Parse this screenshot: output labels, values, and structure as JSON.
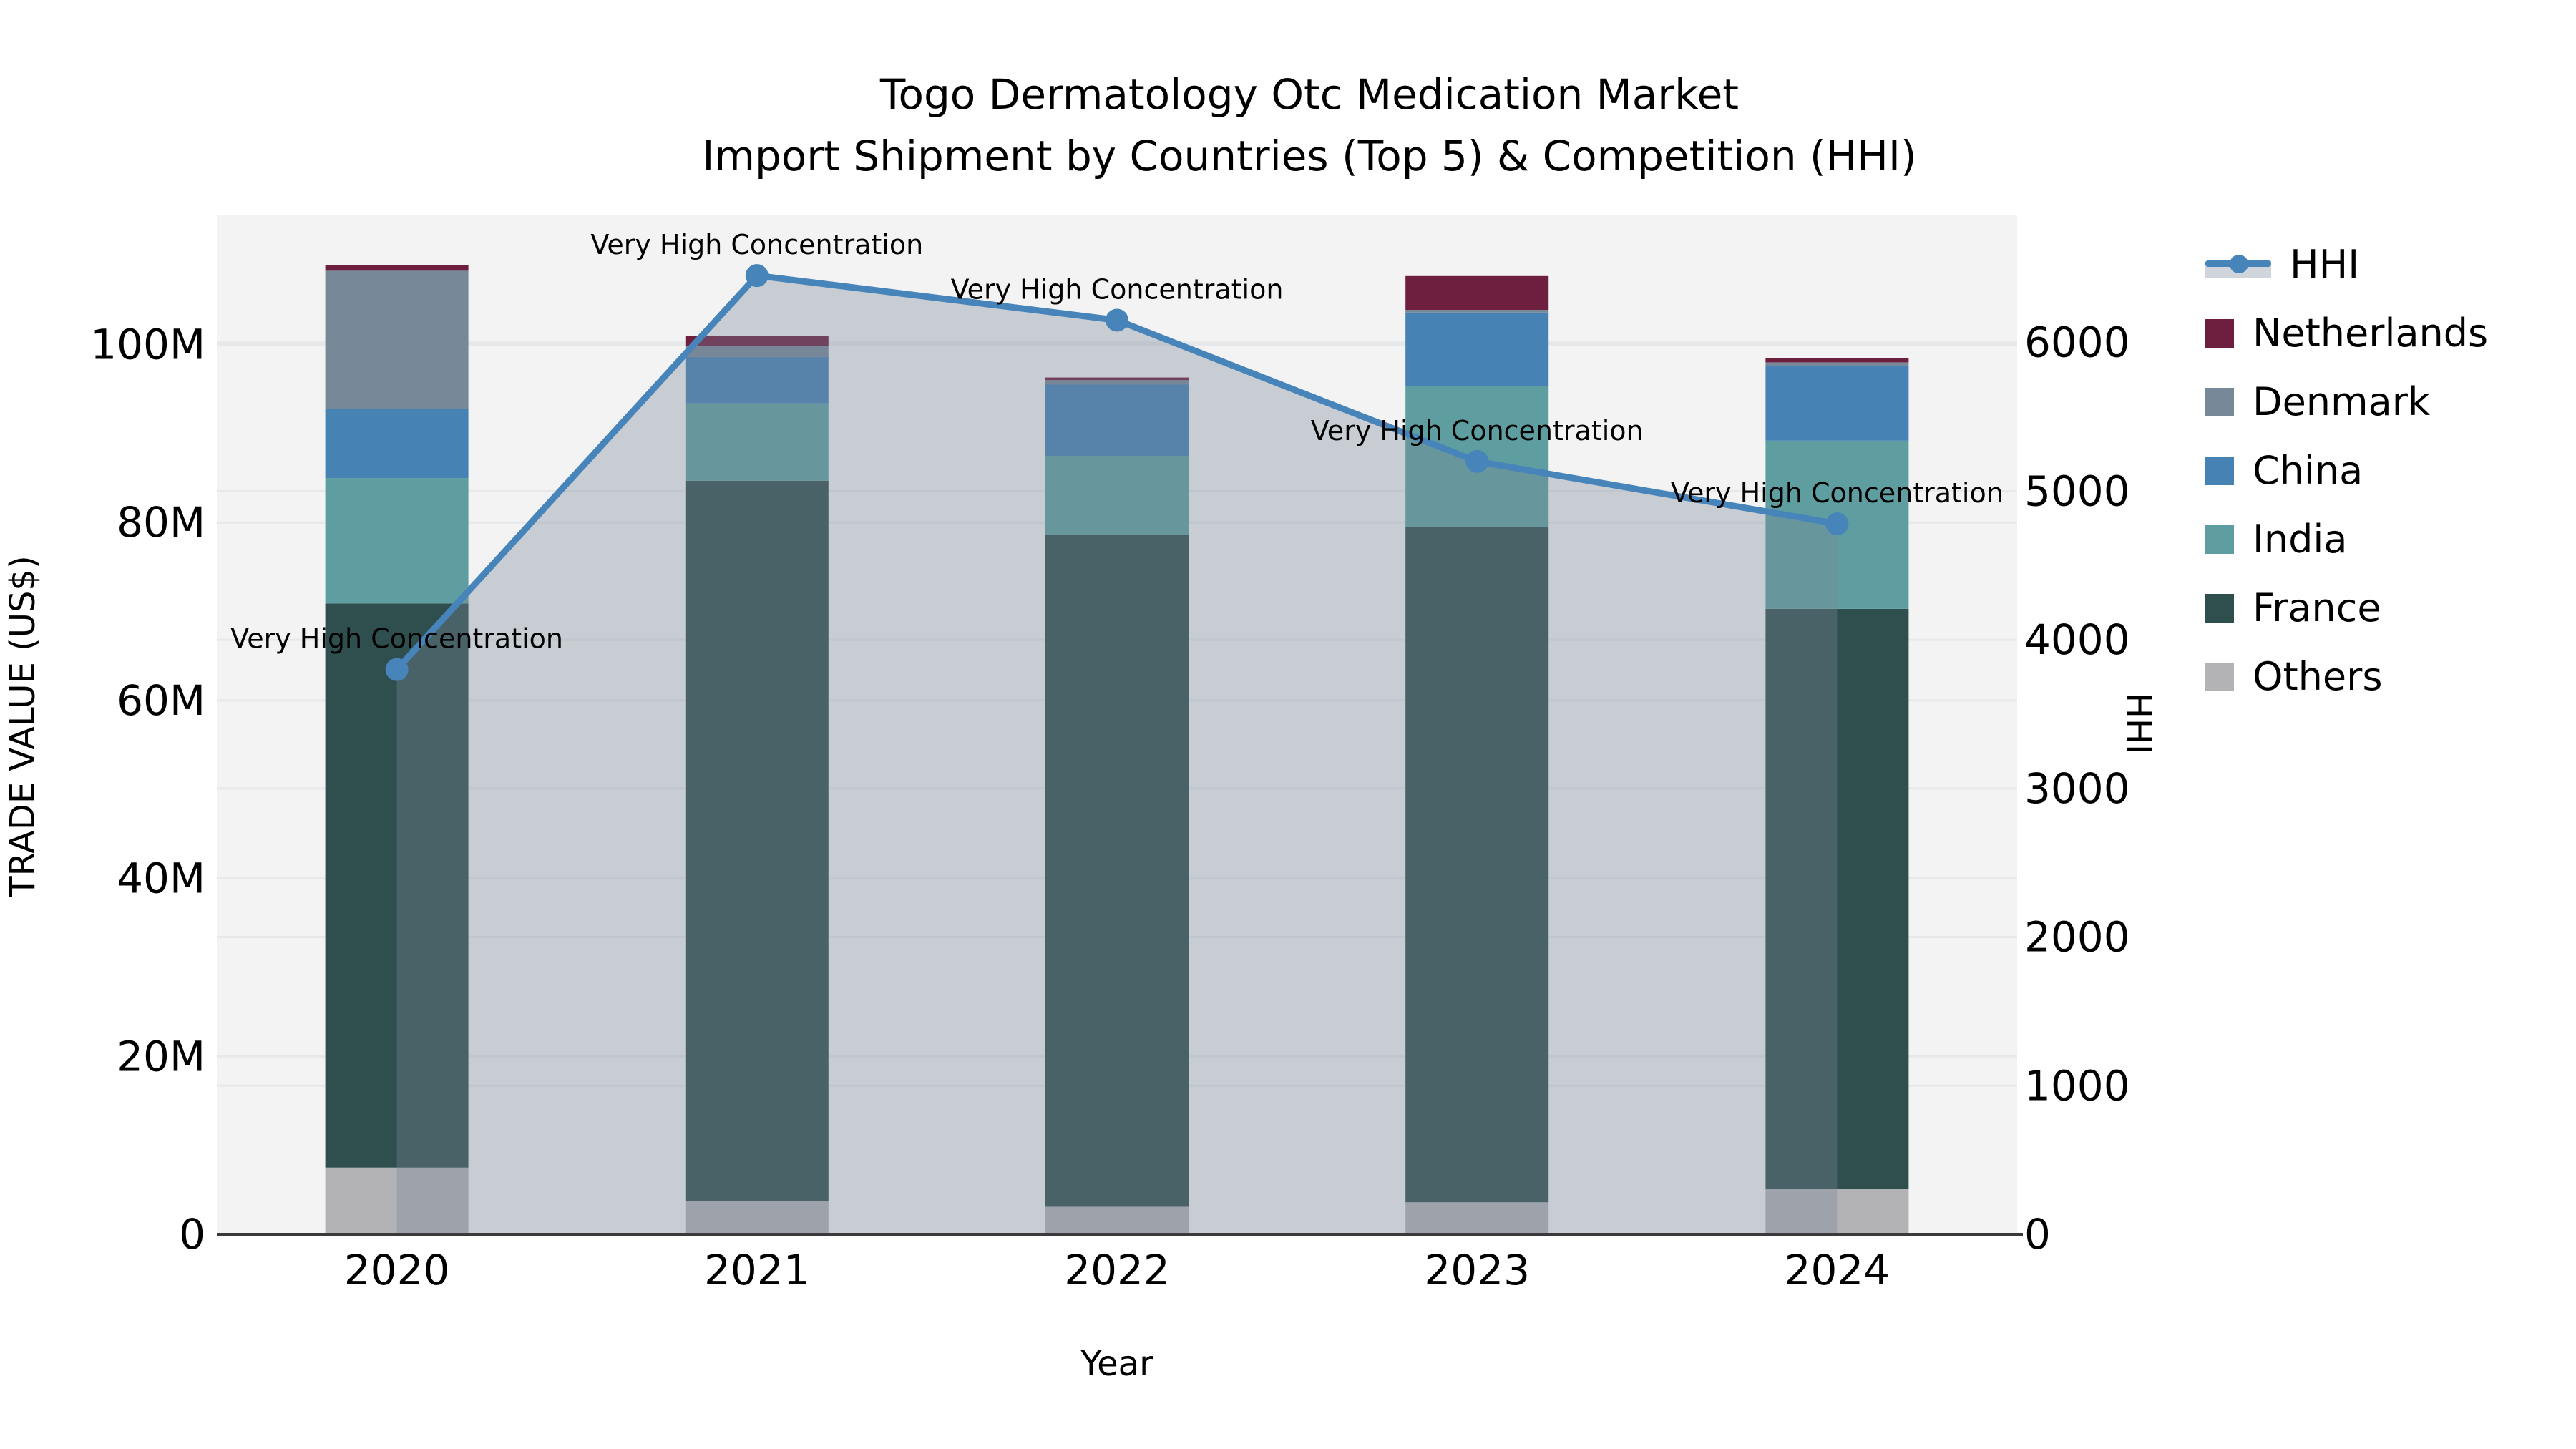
{
  "title": {
    "line1": "Togo Dermatology Otc Medication Market",
    "line2": "Import Shipment by Countries (Top 5) & Competition (HHI)"
  },
  "axes": {
    "x": {
      "label": "Year",
      "ticks": [
        "2020",
        "2021",
        "2022",
        "2023",
        "2024"
      ]
    },
    "left": {
      "label": "TRADE VALUE (US$)",
      "ticks": [
        "0",
        "20M",
        "40M",
        "60M",
        "80M",
        "100M"
      ],
      "tick_values": [
        0,
        20,
        40,
        60,
        80,
        100
      ],
      "max": 114.6
    },
    "right": {
      "label": "HHI",
      "ticks": [
        "0",
        "1000",
        "2000",
        "3000",
        "4000",
        "5000",
        "6000"
      ],
      "tick_values": [
        0,
        1000,
        2000,
        3000,
        4000,
        5000,
        6000
      ],
      "max": 6860
    }
  },
  "legend": {
    "items": [
      {
        "label": "HHI",
        "type": "line",
        "color": "#4784ba",
        "band_color": "#cfd5db"
      },
      {
        "label": "Netherlands",
        "type": "swatch",
        "color": "#6e1e3e"
      },
      {
        "label": "Denmark",
        "type": "swatch",
        "color": "#778899"
      },
      {
        "label": "China",
        "type": "swatch",
        "color": "#4682b4"
      },
      {
        "label": "India",
        "type": "swatch",
        "color": "#5f9ea0"
      },
      {
        "label": "France",
        "type": "swatch",
        "color": "#2f4f4f"
      },
      {
        "label": "Others",
        "type": "swatch",
        "color": "#b3b3b5"
      }
    ]
  },
  "chart_data": {
    "type": "combo-stacked-bar-line",
    "categories": [
      "2020",
      "2021",
      "2022",
      "2023",
      "2024"
    ],
    "bar_units": "M US$",
    "series": [
      {
        "name": "Others",
        "color": "#b3b3b5",
        "values": [
          7.5,
          3.7,
          3.1,
          3.6,
          5.1
        ]
      },
      {
        "name": "France",
        "color": "#2f4f4f",
        "values": [
          63.4,
          81.0,
          75.5,
          75.9,
          65.2
        ]
      },
      {
        "name": "India",
        "color": "#5f9ea0",
        "values": [
          14.1,
          8.7,
          8.9,
          15.8,
          18.9
        ]
      },
      {
        "name": "China",
        "color": "#4682b4",
        "values": [
          7.8,
          5.2,
          8.0,
          8.3,
          8.4
        ]
      },
      {
        "name": "Denmark",
        "color": "#778899",
        "values": [
          15.5,
          1.2,
          0.5,
          0.3,
          0.4
        ]
      },
      {
        "name": "Netherlands",
        "color": "#6e1e3e",
        "values": [
          0.6,
          1.2,
          0.3,
          3.8,
          0.5
        ]
      }
    ],
    "bar_totals": [
      108.9,
      101.0,
      96.3,
      107.7,
      98.5
    ],
    "line_series": {
      "name": "HHI",
      "axis": "right",
      "color": "#4784ba",
      "area_fill": "rgba(119,136,153,0.35)",
      "values": [
        3800,
        6450,
        6150,
        5200,
        4780
      ],
      "annotations": [
        "Very High Concentration",
        "Very High Concentration",
        "Very High Concentration",
        "Very High Concentration",
        "Very High Concentration"
      ]
    },
    "title": "Togo Dermatology Otc Medication Market — Import Shipment by Countries (Top 5) & Competition (HHI)",
    "xlabel": "Year",
    "ylabel_left": "TRADE VALUE (US$)",
    "ylabel_right": "HHI",
    "ylim_left": [
      0,
      114.6
    ],
    "ylim_right": [
      0,
      6860
    ],
    "grid": true,
    "legend_position": "right"
  },
  "style": {
    "plot_bg": "#f3f3f4",
    "grid_color": "#e7e8ea",
    "baseline_color": "#3a3a3a",
    "text_color": "#000000"
  }
}
